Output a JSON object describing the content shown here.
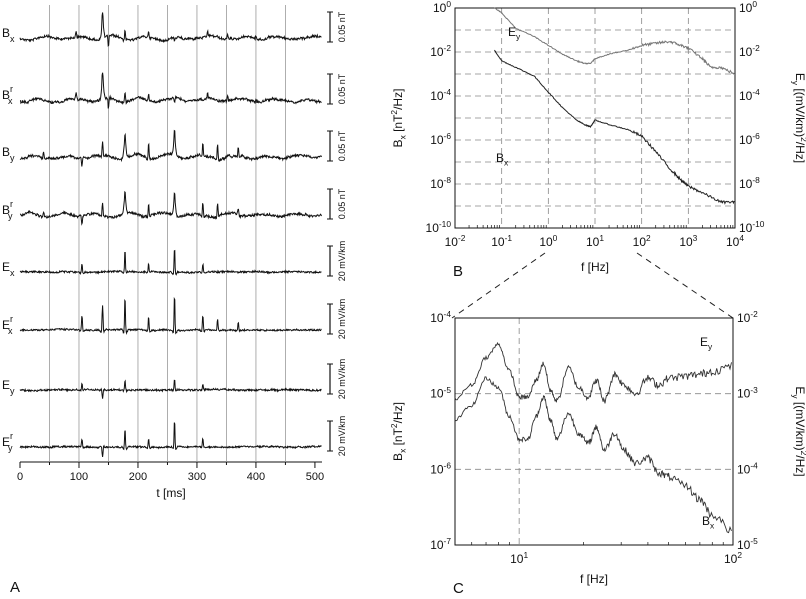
{
  "panels": {
    "a_label": "A",
    "b_label": "B",
    "c_label": "C"
  },
  "chart_data": [
    {
      "type": "line",
      "panel": "A",
      "xlabel": "t [ms]",
      "x_ticks": [
        0,
        100,
        200,
        300,
        400,
        500
      ],
      "xlim": [
        0,
        512
      ],
      "vertical_gridlines_ms": [
        50,
        100,
        150,
        200,
        250,
        300,
        350,
        400,
        450
      ],
      "color": "#111111",
      "traces": [
        {
          "label": "B",
          "sub": "x",
          "sup": "",
          "scale": "0.05 nT",
          "spikes": [
            [
              95,
              -6
            ],
            [
              140,
              -26
            ],
            [
              150,
              10
            ],
            [
              178,
              -10
            ],
            [
              218,
              -6
            ],
            [
              262,
              4
            ],
            [
              318,
              -5
            ],
            [
              352,
              -4
            ],
            [
              400,
              -3
            ]
          ]
        },
        {
          "label": "B",
          "sub": "x",
          "sup": "r",
          "scale": "0.05 nT",
          "spikes": [
            [
              95,
              -6
            ],
            [
              140,
              -26
            ],
            [
              150,
              10
            ],
            [
              178,
              -10
            ],
            [
              218,
              -6
            ],
            [
              262,
              4
            ],
            [
              318,
              -5
            ],
            [
              352,
              -4
            ],
            [
              400,
              -3
            ]
          ]
        },
        {
          "label": "B",
          "sub": "y",
          "sup": "",
          "scale": "0.05 nT",
          "spikes": [
            [
              40,
              -6
            ],
            [
              105,
              8
            ],
            [
              140,
              -14
            ],
            [
              178,
              -24
            ],
            [
              218,
              -14
            ],
            [
              262,
              -26
            ],
            [
              310,
              -12
            ],
            [
              335,
              -14
            ],
            [
              370,
              -8
            ]
          ]
        },
        {
          "label": "B",
          "sub": "y",
          "sup": "r",
          "scale": "0.05 nT",
          "spikes": [
            [
              40,
              -6
            ],
            [
              105,
              8
            ],
            [
              140,
              -12
            ],
            [
              178,
              -22
            ],
            [
              218,
              -12
            ],
            [
              262,
              -24
            ],
            [
              310,
              -12
            ],
            [
              335,
              -12
            ],
            [
              370,
              -6
            ]
          ]
        },
        {
          "label": "E",
          "sub": "x",
          "sup": "",
          "scale": "20 mV/km",
          "spikes": [
            [
              105,
              -8
            ],
            [
              178,
              -20
            ],
            [
              218,
              -8
            ],
            [
              262,
              -24
            ],
            [
              310,
              -8
            ]
          ]
        },
        {
          "label": "E",
          "sub": "x",
          "sup": "r",
          "scale": "20 mV/km",
          "spikes": [
            [
              105,
              -14
            ],
            [
              140,
              -24
            ],
            [
              178,
              -32
            ],
            [
              218,
              -14
            ],
            [
              262,
              -34
            ],
            [
              310,
              -14
            ],
            [
              335,
              -10
            ],
            [
              370,
              -8
            ]
          ]
        },
        {
          "label": "E",
          "sub": "y",
          "sup": "",
          "scale": "20 mV/km",
          "spikes": [
            [
              105,
              -6
            ],
            [
              140,
              8
            ],
            [
              178,
              -10
            ],
            [
              262,
              -10
            ],
            [
              310,
              -6
            ]
          ]
        },
        {
          "label": "E",
          "sub": "y",
          "sup": "r",
          "scale": "20 mV/km",
          "spikes": [
            [
              105,
              -8
            ],
            [
              140,
              10
            ],
            [
              178,
              -18
            ],
            [
              218,
              -8
            ],
            [
              262,
              -26
            ],
            [
              310,
              -8
            ]
          ]
        }
      ]
    },
    {
      "type": "line",
      "panel": "B",
      "xlabel": "f [Hz]",
      "ylabel_left": "B_x [nT^2/Hz]",
      "ylabel_right": "E_y [(mV/km)^2/Hz]",
      "x_log_range": [
        -2,
        4
      ],
      "y_log_range": [
        -10,
        0
      ],
      "x_tick_labels": [
        "10^-2",
        "10^-1",
        "10^0",
        "10^1",
        "10^2",
        "10^3",
        "10^4"
      ],
      "y_tick_labels": [
        "10^-10",
        "10^-8",
        "10^-6",
        "10^-4",
        "10^-2",
        "10^0"
      ],
      "grid": true,
      "series": [
        {
          "name": "E_y",
          "color": "#777777",
          "x": [
            0.07,
            0.1,
            0.2,
            0.5,
            1,
            2,
            4,
            6,
            8,
            10,
            20,
            50,
            100,
            200,
            400,
            700,
            1000,
            2000,
            3000,
            5000,
            10000
          ],
          "y": [
            1.0,
            0.6,
            0.12,
            0.05,
            0.02,
            0.008,
            0.004,
            0.003,
            0.003,
            0.005,
            0.008,
            0.012,
            0.02,
            0.025,
            0.03,
            0.02,
            0.015,
            0.005,
            0.002,
            0.002,
            0.001
          ]
        },
        {
          "name": "B_x",
          "color": "#222222",
          "x": [
            0.07,
            0.1,
            0.2,
            0.5,
            1,
            2,
            4,
            6,
            8,
            10,
            20,
            50,
            100,
            200,
            400,
            700,
            1000,
            2000,
            5000,
            10000
          ],
          "y": [
            0.012,
            0.004,
            0.002,
            0.0008,
            0.00015,
            3e-05,
            8e-06,
            5e-06,
            4e-06,
            8e-06,
            5e-06,
            3e-06,
            1.5e-06,
            3e-07,
            5e-08,
            1.5e-08,
            8e-09,
            4e-09,
            1.5e-09,
            1.5e-09
          ]
        }
      ]
    },
    {
      "type": "line",
      "panel": "C",
      "xlabel": "f [Hz]",
      "ylabel_left": "B_x [nT^2/Hz]",
      "ylabel_right": "E_y [(mV/km)^2/Hz]",
      "x_log_range": [
        0.7,
        2
      ],
      "y_log_range_left": [
        -7,
        -4
      ],
      "y_log_range_right": [
        -5,
        -2
      ],
      "x_tick_labels": [
        "10^1",
        "10^2"
      ],
      "y_tick_labels_left": [
        "10^-7",
        "10^-6",
        "10^-5",
        "10^-4"
      ],
      "y_tick_labels_right": [
        "10^-5",
        "10^-4",
        "10^-3",
        "10^-2"
      ],
      "grid": true,
      "series": [
        {
          "name": "E_y",
          "color": "#333333",
          "x": [
            5,
            6,
            7,
            8,
            9,
            10,
            11,
            12,
            13,
            14,
            15,
            17,
            19,
            21,
            23,
            25,
            28,
            31,
            35,
            40,
            45,
            50,
            60,
            70,
            80,
            100
          ],
          "y": [
            0.00085,
            0.0013,
            0.003,
            0.0045,
            0.002,
            0.0009,
            0.0009,
            0.0015,
            0.0025,
            0.0011,
            0.0008,
            0.0022,
            0.0012,
            0.0009,
            0.0015,
            0.0008,
            0.0018,
            0.0013,
            0.001,
            0.0016,
            0.0013,
            0.0016,
            0.0017,
            0.0018,
            0.002,
            0.0023
          ]
        },
        {
          "name": "B_x",
          "color": "#333333",
          "x": [
            5,
            6,
            7,
            8,
            9,
            10,
            11,
            12,
            13,
            14,
            15,
            17,
            19,
            21,
            23,
            25,
            28,
            31,
            35,
            40,
            45,
            50,
            60,
            70,
            80,
            100
          ],
          "y": [
            4.5e-06,
            7e-06,
            1.6e-05,
            1.2e-05,
            5e-06,
            2.5e-06,
            2.5e-06,
            5e-06,
            9e-06,
            4.5e-06,
            2.5e-06,
            5.5e-06,
            3e-06,
            2.2e-06,
            3.6e-06,
            1.8e-06,
            3e-06,
            1.8e-06,
            1.2e-06,
            1.4e-06,
            9e-07,
            8e-07,
            6e-07,
            4e-07,
            2.5e-07,
            1.5e-07
          ]
        }
      ]
    }
  ]
}
